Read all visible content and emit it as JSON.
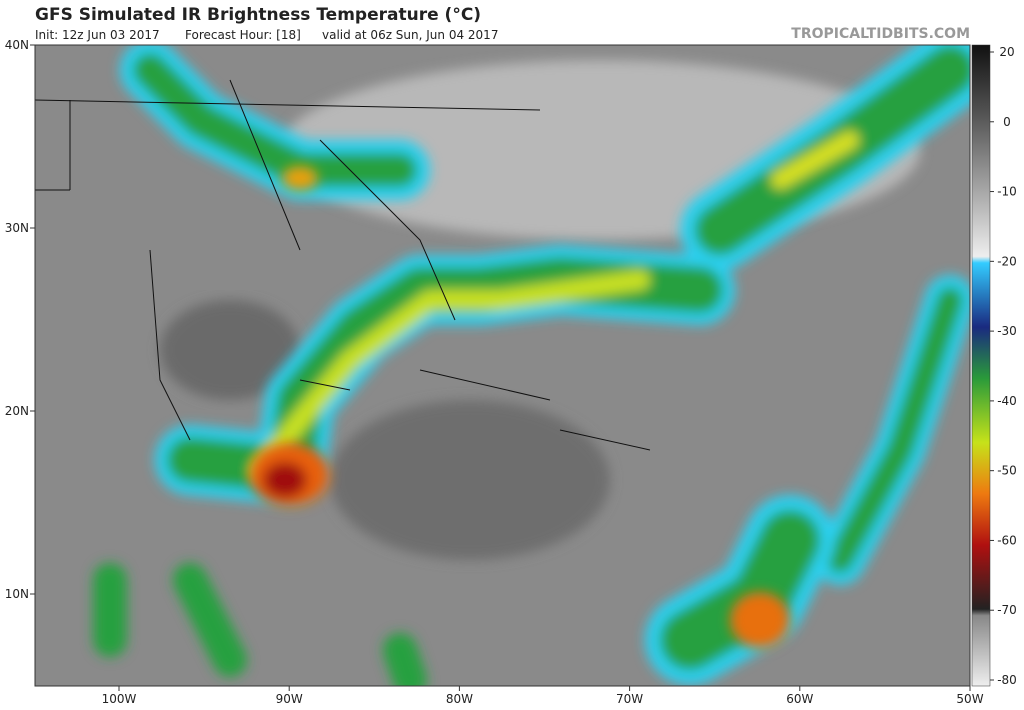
{
  "header": {
    "title": "GFS Simulated IR Brightness Temperature (°C)",
    "init": "Init: 12z Jun 03 2017",
    "forecast_hour": "Forecast Hour: [18]",
    "valid": "valid at 06z Sun, Jun 04 2017",
    "site": "TROPICALTIDBITS.COM"
  },
  "map": {
    "lat_ticks": [
      {
        "value": 40,
        "label": "40N"
      },
      {
        "value": 30,
        "label": "30N"
      },
      {
        "value": 20,
        "label": "20N"
      },
      {
        "value": 10,
        "label": "10N"
      }
    ],
    "lon_ticks": [
      {
        "value": -100,
        "label": "100W"
      },
      {
        "value": -90,
        "label": "90W"
      },
      {
        "value": -80,
        "label": "80W"
      },
      {
        "value": -70,
        "label": "70W"
      },
      {
        "value": -60,
        "label": "60W"
      },
      {
        "value": -50,
        "label": "50W"
      }
    ]
  },
  "colorbar": {
    "ticks": [
      20,
      0,
      -10,
      -20,
      -30,
      -40,
      -50,
      -60,
      -70,
      -80
    ]
  }
}
